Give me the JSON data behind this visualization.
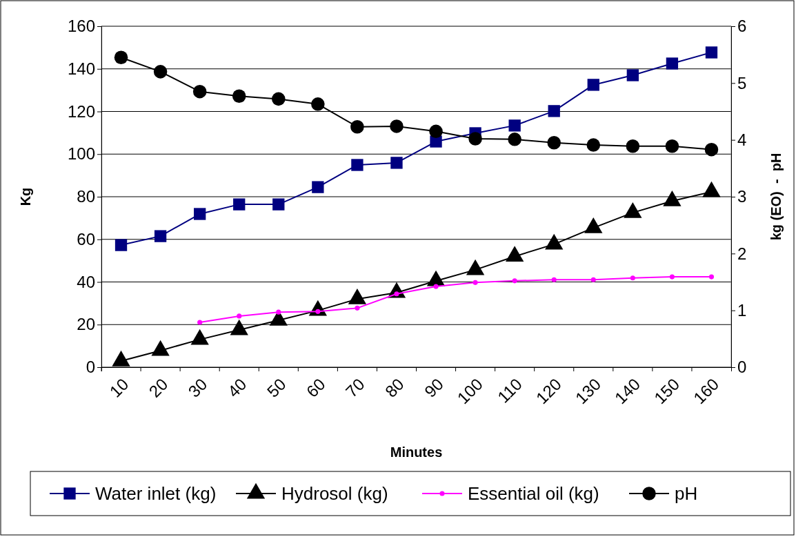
{
  "chart_data": {
    "type": "line",
    "xlabel": "Minutes",
    "ylabel": "Kg",
    "y2label": "kg (EO)  -  pH",
    "categories": [
      "10",
      "20",
      "30",
      "40",
      "50",
      "60",
      "70",
      "80",
      "90",
      "100",
      "110",
      "120",
      "130",
      "140",
      "150",
      "160"
    ],
    "ylim": [
      0,
      160
    ],
    "yticks": [
      0,
      20,
      40,
      60,
      80,
      100,
      120,
      140,
      160
    ],
    "y2lim": [
      0,
      6
    ],
    "y2ticks": [
      0,
      1,
      2,
      3,
      4,
      5,
      6
    ],
    "grid": "y",
    "legend": "bottom",
    "series": [
      {
        "name": "Water inlet (kg)",
        "color": "#000080",
        "marker": "square",
        "values": [
          57.3,
          61.5,
          71.9,
          76.4,
          76.4,
          84.5,
          94.9,
          95.9,
          105.9,
          109.8,
          113.4,
          120.2,
          132.5,
          137,
          142.5,
          147.7
        ]
      },
      {
        "name": "Hydrosol (kg)",
        "color": "#000000",
        "marker": "triangle",
        "values": [
          2.9,
          7.8,
          13,
          17.5,
          22,
          26.6,
          32,
          35,
          40.5,
          45.7,
          52,
          57.7,
          65.4,
          72.5,
          78,
          82.3
        ]
      },
      {
        "name": "Essential oil (kg)",
        "color": "#ff00ff",
        "marker": "circle",
        "axis": "y2",
        "values": [
          null,
          null,
          0.79,
          0.9,
          0.97,
          0.98,
          1.04,
          1.29,
          1.42,
          1.49,
          1.52,
          1.54,
          1.54,
          1.57,
          1.59,
          1.59
        ]
      },
      {
        "name": "pH",
        "color": "#000000",
        "marker": "circle",
        "axis": "y2",
        "values": [
          5.45,
          5.2,
          4.85,
          4.77,
          4.72,
          4.63,
          4.23,
          4.24,
          4.15,
          4.02,
          4.01,
          3.95,
          3.91,
          3.89,
          3.89,
          3.83
        ]
      }
    ]
  }
}
